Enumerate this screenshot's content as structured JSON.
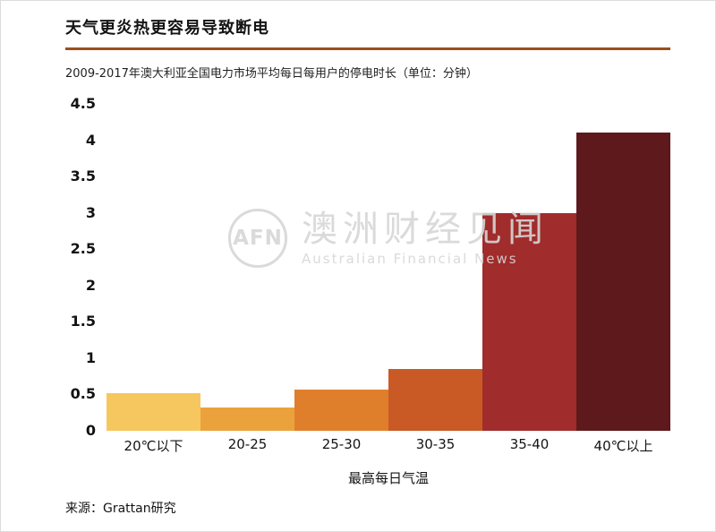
{
  "page": {
    "title": "天气更炎热更容易导致断电",
    "subtitle": "2009-2017年澳大利亚全国电力市场平均每日每用户的停电时长（单位：分钟）",
    "source": "来源：Grattan研究",
    "divider_color": "#9c4f1c"
  },
  "watermark": {
    "abbr": "AFN",
    "name_cn": "澳洲财经见闻",
    "name_en": "Australian Financial News",
    "color": "#d6d6d6"
  },
  "chart_data": {
    "type": "bar",
    "title": "天气更炎热更容易导致断电",
    "subtitle": "2009-2017年澳大利亚全国电力市场平均每日每用户的停电时长（单位：分钟）",
    "categories": [
      "20℃以下",
      "20-25",
      "25-30",
      "30-35",
      "35-40",
      "40℃以上"
    ],
    "values": [
      0.52,
      0.32,
      0.57,
      0.85,
      3.0,
      4.1
    ],
    "bar_colors": [
      "#f6c75f",
      "#eca23c",
      "#e07f2b",
      "#c95a25",
      "#a02c2b",
      "#5e191c"
    ],
    "xlabel": "最高每日气温",
    "ylabel": "",
    "ylim": [
      0,
      4.5
    ],
    "yticks": [
      0,
      0.5,
      1,
      1.5,
      2,
      2.5,
      3,
      3.5,
      4,
      4.5
    ],
    "grid": false,
    "legend": "none",
    "source": "Grattan研究"
  }
}
